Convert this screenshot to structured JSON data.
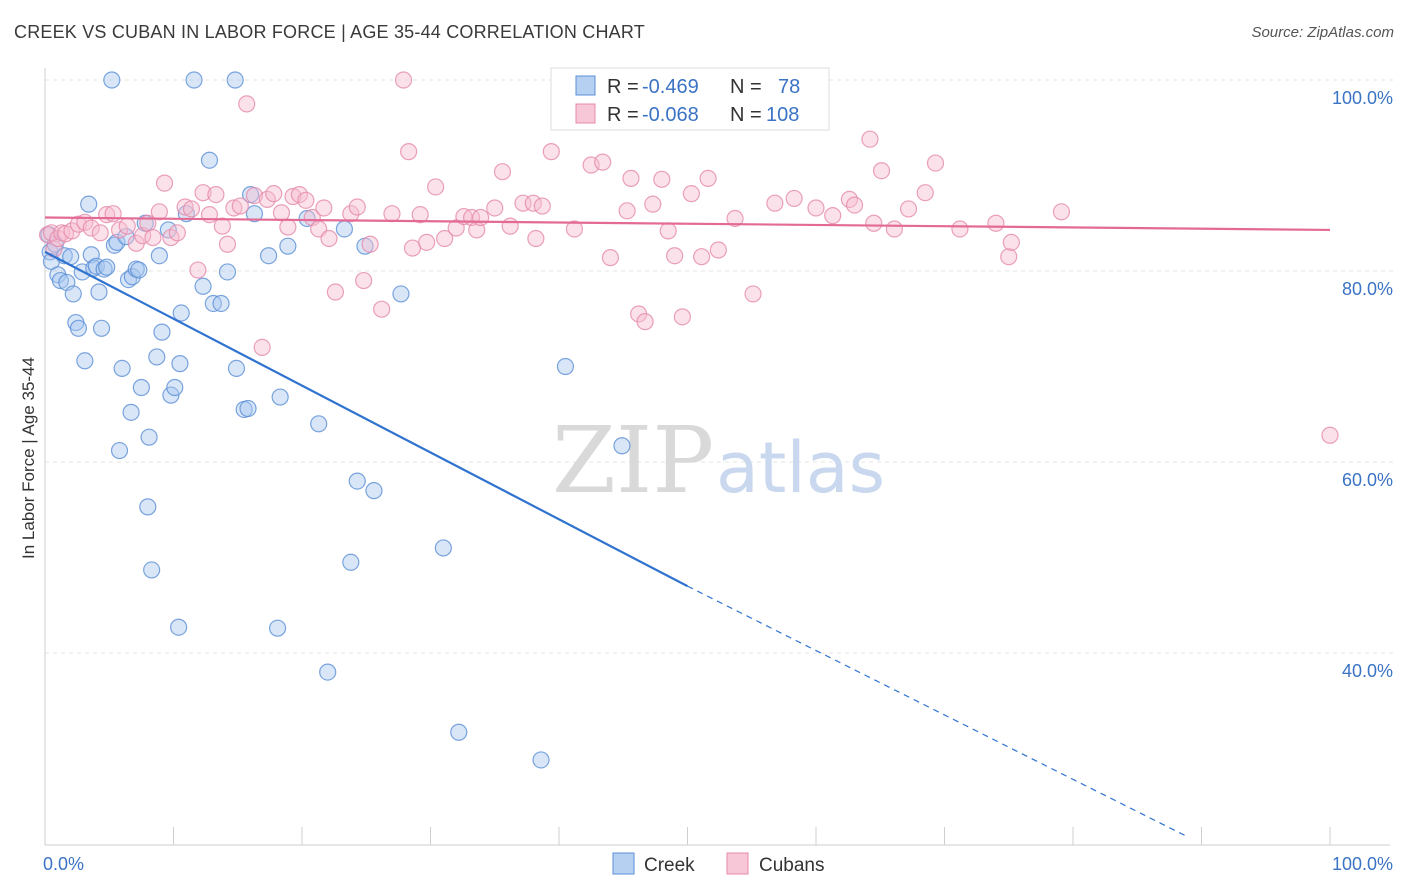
{
  "title": "CREEK VS CUBAN IN LABOR FORCE | AGE 35-44 CORRELATION CHART",
  "source": "Source: ZipAtlas.com",
  "watermark": {
    "zip": "ZIP",
    "atlas": "atlas"
  },
  "legend": {
    "r_label": "R =",
    "n_label": "N =",
    "rows": [
      {
        "r": "-0.469",
        "n": "78",
        "color": "#a9c8f0",
        "stroke": "#5b8fd6"
      },
      {
        "r": "-0.068",
        "n": "108",
        "color": "#f7bdd0",
        "stroke": "#e58aaa"
      }
    ]
  },
  "bottom_legend": [
    {
      "name": "Creek",
      "color": "#a9c8f0",
      "stroke": "#5b8fd6"
    },
    {
      "name": "Cubans",
      "color": "#f7bdd0",
      "stroke": "#e58aaa"
    }
  ],
  "chart_data": {
    "type": "scatter",
    "title": "CREEK VS CUBAN IN LABOR FORCE | AGE 35-44 CORRELATION CHART",
    "xlabel": "",
    "ylabel": "In Labor Force | Age 35-44",
    "xlim": [
      0,
      100
    ],
    "ylim": [
      20,
      102
    ],
    "x_tick_labels": [
      "0.0%",
      "100.0%"
    ],
    "y_ticks": [
      40,
      60,
      80,
      100
    ],
    "y_tick_labels": [
      "40.0%",
      "60.0%",
      "80.0%",
      "100.0%"
    ],
    "grid": true,
    "series": [
      {
        "name": "Creek",
        "color": "#5b8fd6",
        "fill": "#a9c8f0",
        "trend": {
          "x0": 0,
          "y0": 82.0,
          "x1": 50,
          "y1": 47.0,
          "dash_to_x": 89,
          "dash_to_y": 20.7
        },
        "points": [
          [
            0.3,
            83.8
          ],
          [
            0.4,
            82.0
          ],
          [
            0.5,
            81.0
          ],
          [
            0.8,
            82.8
          ],
          [
            1.0,
            79.6
          ],
          [
            1.2,
            79.0
          ],
          [
            1.5,
            81.6
          ],
          [
            1.7,
            78.8
          ],
          [
            2.0,
            81.5
          ],
          [
            2.2,
            77.6
          ],
          [
            2.4,
            74.6
          ],
          [
            2.6,
            74.0
          ],
          [
            2.9,
            79.9
          ],
          [
            3.1,
            70.6
          ],
          [
            3.4,
            87.0
          ],
          [
            3.6,
            81.7
          ],
          [
            3.8,
            80.3
          ],
          [
            4.0,
            80.5
          ],
          [
            4.2,
            77.8
          ],
          [
            4.4,
            74.0
          ],
          [
            4.6,
            80.2
          ],
          [
            4.8,
            80.4
          ],
          [
            5.2,
            100.0
          ],
          [
            5.4,
            82.7
          ],
          [
            5.6,
            83.0
          ],
          [
            5.8,
            61.2
          ],
          [
            6.0,
            69.8
          ],
          [
            6.3,
            83.6
          ],
          [
            6.5,
            79.1
          ],
          [
            6.7,
            65.2
          ],
          [
            6.8,
            79.4
          ],
          [
            7.1,
            80.2
          ],
          [
            7.3,
            80.1
          ],
          [
            7.5,
            67.8
          ],
          [
            7.8,
            85.0
          ],
          [
            8.1,
            62.6
          ],
          [
            8.3,
            48.7
          ],
          [
            8.0,
            55.3
          ],
          [
            8.7,
            71.0
          ],
          [
            8.9,
            81.6
          ],
          [
            9.1,
            73.6
          ],
          [
            9.6,
            84.3
          ],
          [
            9.8,
            67.0
          ],
          [
            10.1,
            67.8
          ],
          [
            10.4,
            42.7
          ],
          [
            10.5,
            70.3
          ],
          [
            10.6,
            75.6
          ],
          [
            11.0,
            86.0
          ],
          [
            11.6,
            100.0
          ],
          [
            12.3,
            78.4
          ],
          [
            12.8,
            91.6
          ],
          [
            13.1,
            76.6
          ],
          [
            13.7,
            76.6
          ],
          [
            14.2,
            79.9
          ],
          [
            14.8,
            100.0
          ],
          [
            14.9,
            69.8
          ],
          [
            15.5,
            65.5
          ],
          [
            15.8,
            65.6
          ],
          [
            16.0,
            88.0
          ],
          [
            16.3,
            86.0
          ],
          [
            17.4,
            81.6
          ],
          [
            18.1,
            42.6
          ],
          [
            18.3,
            66.8
          ],
          [
            18.9,
            82.6
          ],
          [
            20.4,
            85.5
          ],
          [
            21.3,
            64.0
          ],
          [
            22.0,
            38.0
          ],
          [
            23.3,
            84.4
          ],
          [
            23.8,
            49.5
          ],
          [
            24.3,
            58.0
          ],
          [
            24.9,
            82.6
          ],
          [
            25.6,
            57.0
          ],
          [
            27.7,
            77.6
          ],
          [
            31.0,
            51.0
          ],
          [
            32.2,
            31.7
          ],
          [
            38.6,
            28.8
          ],
          [
            40.5,
            70.0
          ],
          [
            44.9,
            61.7
          ]
        ]
      },
      {
        "name": "Cubans",
        "color": "#e58aaa",
        "fill": "#f7bdd0",
        "trend": {
          "x0": 0,
          "y0": 85.6,
          "x1": 100,
          "y1": 84.3
        },
        "points": [
          [
            0.2,
            83.8
          ],
          [
            0.5,
            84.0
          ],
          [
            0.7,
            82.3
          ],
          [
            1.0,
            83.4
          ],
          [
            1.3,
            84.0
          ],
          [
            1.6,
            83.9
          ],
          [
            2.1,
            84.2
          ],
          [
            2.6,
            84.9
          ],
          [
            3.1,
            85.1
          ],
          [
            3.6,
            84.5
          ],
          [
            4.3,
            84.0
          ],
          [
            4.8,
            85.9
          ],
          [
            5.3,
            86.0
          ],
          [
            5.8,
            84.3
          ],
          [
            6.4,
            84.7
          ],
          [
            7.1,
            82.9
          ],
          [
            7.6,
            83.7
          ],
          [
            8.0,
            85.0
          ],
          [
            8.4,
            83.5
          ],
          [
            8.9,
            86.2
          ],
          [
            9.3,
            89.2
          ],
          [
            9.8,
            83.5
          ],
          [
            10.3,
            84.0
          ],
          [
            10.9,
            86.7
          ],
          [
            11.4,
            86.5
          ],
          [
            11.9,
            80.1
          ],
          [
            12.3,
            88.2
          ],
          [
            12.8,
            85.9
          ],
          [
            13.3,
            88.0
          ],
          [
            13.8,
            84.7
          ],
          [
            14.2,
            82.8
          ],
          [
            14.7,
            86.6
          ],
          [
            15.2,
            86.8
          ],
          [
            15.7,
            97.5
          ],
          [
            16.3,
            87.9
          ],
          [
            16.9,
            72.0
          ],
          [
            17.3,
            87.5
          ],
          [
            17.8,
            88.1
          ],
          [
            18.4,
            86.1
          ],
          [
            18.9,
            84.6
          ],
          [
            19.3,
            87.8
          ],
          [
            19.8,
            88.0
          ],
          [
            20.3,
            87.4
          ],
          [
            20.8,
            85.6
          ],
          [
            21.3,
            84.4
          ],
          [
            21.7,
            86.6
          ],
          [
            22.1,
            83.4
          ],
          [
            22.6,
            77.8
          ],
          [
            23.8,
            86.0
          ],
          [
            24.3,
            86.7
          ],
          [
            24.8,
            79.0
          ],
          [
            25.3,
            82.8
          ],
          [
            26.2,
            76.0
          ],
          [
            27.0,
            86.0
          ],
          [
            27.9,
            100.0
          ],
          [
            28.3,
            92.5
          ],
          [
            28.6,
            82.4
          ],
          [
            29.2,
            85.9
          ],
          [
            29.7,
            83.0
          ],
          [
            30.4,
            88.8
          ],
          [
            31.1,
            83.4
          ],
          [
            32.0,
            84.5
          ],
          [
            32.6,
            85.7
          ],
          [
            33.2,
            85.6
          ],
          [
            33.6,
            84.3
          ],
          [
            33.9,
            85.6
          ],
          [
            35.0,
            86.6
          ],
          [
            35.6,
            90.4
          ],
          [
            36.2,
            84.7
          ],
          [
            37.2,
            87.1
          ],
          [
            38.0,
            87.1
          ],
          [
            38.2,
            83.4
          ],
          [
            38.7,
            86.8
          ],
          [
            39.4,
            92.5
          ],
          [
            41.2,
            84.4
          ],
          [
            42.5,
            91.1
          ],
          [
            43.4,
            91.4
          ],
          [
            44.0,
            81.4
          ],
          [
            45.3,
            86.3
          ],
          [
            45.6,
            89.7
          ],
          [
            46.2,
            75.5
          ],
          [
            46.7,
            74.7
          ],
          [
            47.3,
            87.0
          ],
          [
            48.0,
            89.6
          ],
          [
            48.5,
            84.2
          ],
          [
            49.0,
            81.6
          ],
          [
            49.6,
            75.2
          ],
          [
            50.3,
            88.1
          ],
          [
            51.1,
            81.5
          ],
          [
            51.6,
            89.7
          ],
          [
            52.4,
            82.2
          ],
          [
            53.7,
            85.5
          ],
          [
            55.1,
            77.6
          ],
          [
            56.8,
            87.1
          ],
          [
            58.3,
            87.6
          ],
          [
            60.0,
            86.6
          ],
          [
            61.3,
            85.8
          ],
          [
            62.6,
            87.5
          ],
          [
            63.0,
            86.9
          ],
          [
            64.2,
            93.8
          ],
          [
            64.5,
            85.0
          ],
          [
            65.1,
            90.5
          ],
          [
            66.1,
            84.4
          ],
          [
            67.2,
            86.5
          ],
          [
            68.5,
            88.2
          ],
          [
            69.3,
            91.3
          ],
          [
            71.2,
            84.4
          ],
          [
            74.0,
            85.0
          ],
          [
            75.0,
            81.5
          ],
          [
            79.1,
            86.2
          ],
          [
            75.2,
            83.0
          ],
          [
            100.0,
            62.8
          ]
        ]
      }
    ]
  }
}
